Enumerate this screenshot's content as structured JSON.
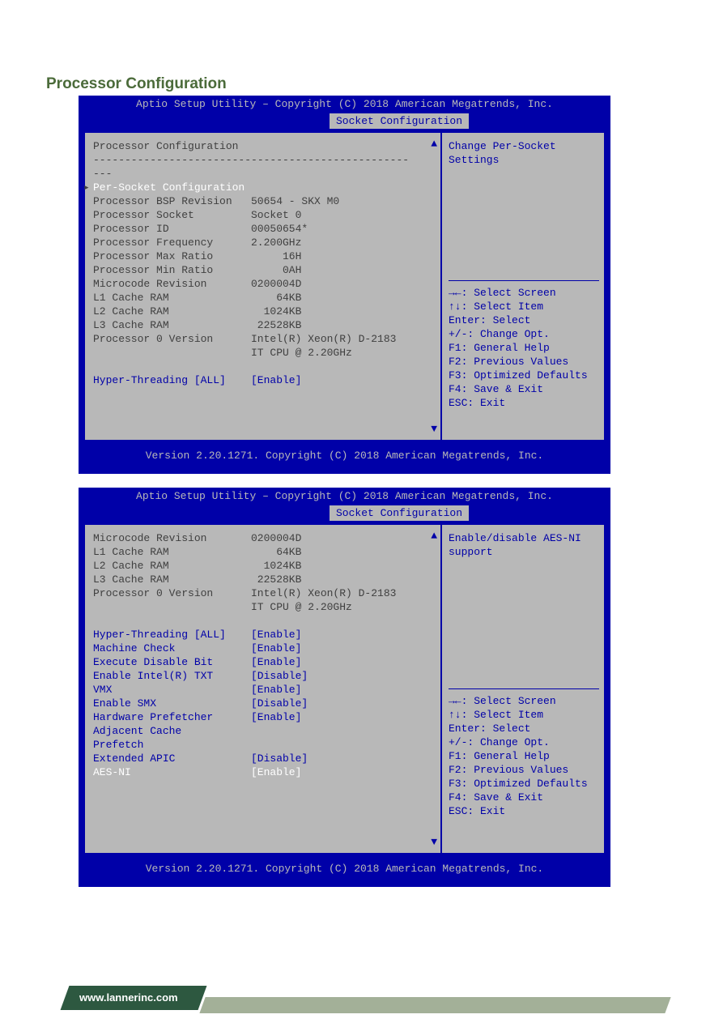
{
  "page": {
    "title": "Processor Configuration"
  },
  "footer": {
    "url": "www.lannerinc.com"
  },
  "colors": {
    "bios_bg": "#0000a8",
    "bios_gray": "#b8b8b8",
    "text_dark": "#404040",
    "text_blue": "#0000a8",
    "text_white": "#ffffff",
    "page_title": "#4b6b3a",
    "footer_green": "#2d5840",
    "footer_line": "#a3b098"
  },
  "panel1": {
    "header": "Aptio Setup Utility – Copyright (C) 2018 American Megatrends, Inc.",
    "tab": "Socket Configuration",
    "help_top": "Change Per-Socket\nSettings",
    "section_title": "Processor Configuration",
    "divider": "--------------------------------------------------",
    "dashes": "---",
    "selected": {
      "label": "Per-Socket Configuration",
      "value": ""
    },
    "rows": [
      {
        "label": "Processor BSP Revision",
        "value": "50654 - SKX M0"
      },
      {
        "label": "Processor Socket",
        "value": "Socket 0"
      },
      {
        "label": "Processor ID",
        "value": "00050654*"
      },
      {
        "label": "Processor Frequency",
        "value": "2.200GHz"
      },
      {
        "label": "Processor Max Ratio",
        "value": "     16H"
      },
      {
        "label": "Processor Min Ratio",
        "value": "     0AH"
      },
      {
        "label": "Microcode Revision",
        "value": "0200004D"
      },
      {
        "label": "L1 Cache RAM",
        "value": "    64KB"
      },
      {
        "label": "L2 Cache RAM",
        "value": "  1024KB"
      },
      {
        "label": "L3 Cache RAM",
        "value": " 22528KB"
      },
      {
        "label": "Processor 0 Version",
        "value": "Intel(R) Xeon(R) D-2183"
      },
      {
        "label": "",
        "value": "IT CPU @ 2.20GHz"
      }
    ],
    "blue_rows": [
      {
        "label": "Hyper-Threading [ALL]",
        "value": "[Enable]"
      }
    ],
    "footer_text": "Version 2.20.1271. Copyright (C) 2018 American Megatrends, Inc."
  },
  "panel2": {
    "header": "Aptio Setup Utility – Copyright (C) 2018 American Megatrends, Inc.",
    "tab": "Socket Configuration",
    "help_top": "Enable/disable AES-NI\nsupport",
    "rows": [
      {
        "label": "Microcode Revision",
        "value": "0200004D"
      },
      {
        "label": "L1 Cache RAM",
        "value": "    64KB"
      },
      {
        "label": "L2 Cache RAM",
        "value": "  1024KB"
      },
      {
        "label": "L3 Cache RAM",
        "value": " 22528KB"
      },
      {
        "label": "Processor 0 Version",
        "value": "Intel(R) Xeon(R) D-2183"
      },
      {
        "label": "",
        "value": "IT CPU @ 2.20GHz"
      }
    ],
    "blue_rows": [
      {
        "label": "Hyper-Threading [ALL]",
        "value": "[Enable]"
      },
      {
        "label": "Machine Check",
        "value": "[Enable]"
      },
      {
        "label": "Execute Disable Bit",
        "value": "[Enable]"
      },
      {
        "label": "Enable Intel(R) TXT",
        "value": "[Disable]"
      },
      {
        "label": "VMX",
        "value": "[Enable]"
      },
      {
        "label": "Enable SMX",
        "value": "[Disable]"
      },
      {
        "label": "Hardware Prefetcher",
        "value": "[Enable]"
      },
      {
        "label": "Adjacent Cache",
        "value": ""
      },
      {
        "label": "Prefetch",
        "value": ""
      },
      {
        "label": "Extended APIC",
        "value": "[Disable]"
      }
    ],
    "selected": {
      "label": "AES-NI",
      "value": "[Enable]"
    },
    "footer_text": "Version 2.20.1271. Copyright (C) 2018 American Megatrends, Inc."
  },
  "help_keys": {
    "l1": "→←: Select Screen",
    "l2": "↑↓: Select Item",
    "l3": "Enter: Select",
    "l4": "+/-: Change Opt.",
    "l5": "F1: General Help",
    "l6": "F2: Previous Values",
    "l7": "F3: Optimized Defaults",
    "l8": "F4: Save & Exit",
    "l9": "ESC: Exit"
  }
}
